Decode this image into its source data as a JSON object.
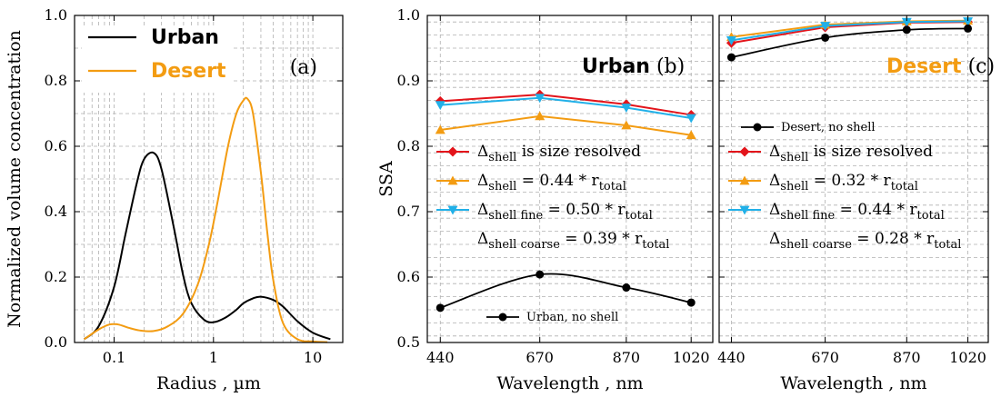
{
  "colors": {
    "urban": "#000000",
    "desert": "#f39c12",
    "red": "#e3141b",
    "orange": "#f39c12",
    "blue": "#21b0e8",
    "black": "#000000",
    "grid": "#b0b0b0"
  },
  "chart_data": [
    {
      "id": "a",
      "type": "line",
      "panel_label": "(a)",
      "xlabel": "Radius , µm",
      "ylabel": "Normalized volume concentration",
      "xscale": "log",
      "xlim": [
        0.04,
        20
      ],
      "ylim": [
        0,
        1.0
      ],
      "xticks": [
        {
          "v": 0.1,
          "label": "0.1"
        },
        {
          "v": 1,
          "label": "1"
        },
        {
          "v": 10,
          "label": "10"
        }
      ],
      "yticks": [
        {
          "v": 0,
          "label": "0.0"
        },
        {
          "v": 0.2,
          "label": "0.2"
        },
        {
          "v": 0.4,
          "label": "0.4"
        },
        {
          "v": 0.6,
          "label": "0.6"
        },
        {
          "v": 0.8,
          "label": "0.8"
        },
        {
          "v": 1.0,
          "label": "1.0"
        }
      ],
      "grid": true,
      "legend_position": "top-left",
      "series": [
        {
          "name": "Urban",
          "color": "urban",
          "x": [
            0.05,
            0.07,
            0.1,
            0.13,
            0.17,
            0.2,
            0.25,
            0.3,
            0.4,
            0.5,
            0.6,
            0.8,
            1.0,
            1.3,
            1.7,
            2.0,
            2.5,
            3.0,
            4.0,
            5.0,
            7.0,
            10.0,
            15.0
          ],
          "y": [
            0.01,
            0.05,
            0.17,
            0.33,
            0.49,
            0.56,
            0.58,
            0.53,
            0.35,
            0.2,
            0.12,
            0.07,
            0.062,
            0.075,
            0.1,
            0.12,
            0.135,
            0.14,
            0.13,
            0.11,
            0.065,
            0.03,
            0.01
          ]
        },
        {
          "name": "Desert",
          "color": "desert",
          "x": [
            0.05,
            0.07,
            0.09,
            0.11,
            0.14,
            0.18,
            0.25,
            0.35,
            0.5,
            0.7,
            0.9,
            1.1,
            1.4,
            1.7,
            2.0,
            2.2,
            2.5,
            3.0,
            3.5,
            4.0,
            5.0,
            7.0,
            10.0,
            14.0
          ],
          "y": [
            0.01,
            0.04,
            0.055,
            0.055,
            0.045,
            0.037,
            0.035,
            0.05,
            0.09,
            0.18,
            0.3,
            0.43,
            0.6,
            0.7,
            0.74,
            0.745,
            0.7,
            0.52,
            0.33,
            0.19,
            0.06,
            0.01,
            0.003,
            0.001
          ]
        }
      ]
    },
    {
      "id": "b",
      "type": "line",
      "panel_label": "(b)",
      "panel_title": "Urban",
      "xlabel": "Wavelength , nm",
      "ylabel": "SSA",
      "x": [
        440,
        670,
        870,
        1020
      ],
      "xticks": [
        {
          "v": 440,
          "label": "440"
        },
        {
          "v": 670,
          "label": "670"
        },
        {
          "v": 870,
          "label": "870"
        },
        {
          "v": 1020,
          "label": "1020"
        }
      ],
      "xlim": [
        410,
        1070
      ],
      "ylim": [
        0.5,
        1.0
      ],
      "yticks": [
        {
          "v": 0.5,
          "label": "0.5"
        },
        {
          "v": 0.6,
          "label": "0.6"
        },
        {
          "v": 0.7,
          "label": "0.7"
        },
        {
          "v": 0.8,
          "label": "0.8"
        },
        {
          "v": 0.9,
          "label": "0.9"
        },
        {
          "v": 1.0,
          "label": "1.0"
        }
      ],
      "grid": true,
      "series": [
        {
          "label_id": "size_resolved",
          "color": "red",
          "marker": "diamond",
          "values": [
            0.869,
            0.879,
            0.864,
            0.848
          ]
        },
        {
          "label_id": "total",
          "color": "orange",
          "marker": "triangle-up",
          "values": [
            0.825,
            0.846,
            0.832,
            0.817
          ]
        },
        {
          "label_id": "fine",
          "color": "blue",
          "marker": "triangle-down",
          "values": [
            0.863,
            0.874,
            0.859,
            0.843
          ]
        },
        {
          "label_id": "no_shell",
          "color": "black",
          "marker": "circle",
          "values": [
            0.553,
            0.604,
            0.584,
            0.561
          ],
          "smooth": true
        }
      ],
      "legend": {
        "size_resolved": {
          "main": "Δ",
          "sub": "shell",
          "rest": " is size resolved"
        },
        "total": {
          "main": "Δ",
          "sub": "shell",
          "rest": " = 0.44 * r",
          "sub2": "total"
        },
        "fine": {
          "main": "Δ",
          "sub": "shell fine",
          "rest": " = 0.50 * r",
          "sub2": "total"
        },
        "coarse": {
          "main": "Δ",
          "sub": "shell coarse",
          "rest": " = 0.39 * r",
          "sub2": "total"
        },
        "no_shell": "Urban, no shell"
      }
    },
    {
      "id": "c",
      "type": "line",
      "panel_label": "(c)",
      "panel_title": "Desert",
      "xlabel": "Wavelength , nm",
      "x": [
        440,
        670,
        870,
        1020
      ],
      "xticks": [
        {
          "v": 440,
          "label": "440"
        },
        {
          "v": 670,
          "label": "670"
        },
        {
          "v": 870,
          "label": "870"
        },
        {
          "v": 1020,
          "label": "1020"
        }
      ],
      "xlim": [
        410,
        1070
      ],
      "ylim": [
        0.5,
        1.0
      ],
      "grid": true,
      "series": [
        {
          "label_id": "size_resolved",
          "color": "red",
          "marker": "diamond",
          "values": [
            0.958,
            0.982,
            0.989,
            0.99
          ]
        },
        {
          "label_id": "total",
          "color": "orange",
          "marker": "triangle-up",
          "values": [
            0.967,
            0.986,
            0.991,
            0.992
          ]
        },
        {
          "label_id": "fine",
          "color": "blue",
          "marker": "triangle-down",
          "values": [
            0.962,
            0.984,
            0.99,
            0.991
          ]
        },
        {
          "label_id": "no_shell",
          "color": "black",
          "marker": "circle",
          "values": [
            0.936,
            0.966,
            0.978,
            0.98
          ],
          "smooth": true
        }
      ],
      "legend": {
        "size_resolved": {
          "main": "Δ",
          "sub": "shell",
          "rest": " is size resolved"
        },
        "total": {
          "main": "Δ",
          "sub": "shell",
          "rest": " = 0.32 * r",
          "sub2": "total"
        },
        "fine": {
          "main": "Δ",
          "sub": "shell fine",
          "rest": " = 0.44 * r",
          "sub2": "total"
        },
        "coarse": {
          "main": "Δ",
          "sub": "shell coarse",
          "rest": " = 0.28 * r",
          "sub2": "total"
        },
        "no_shell": "Desert, no shell"
      }
    }
  ]
}
